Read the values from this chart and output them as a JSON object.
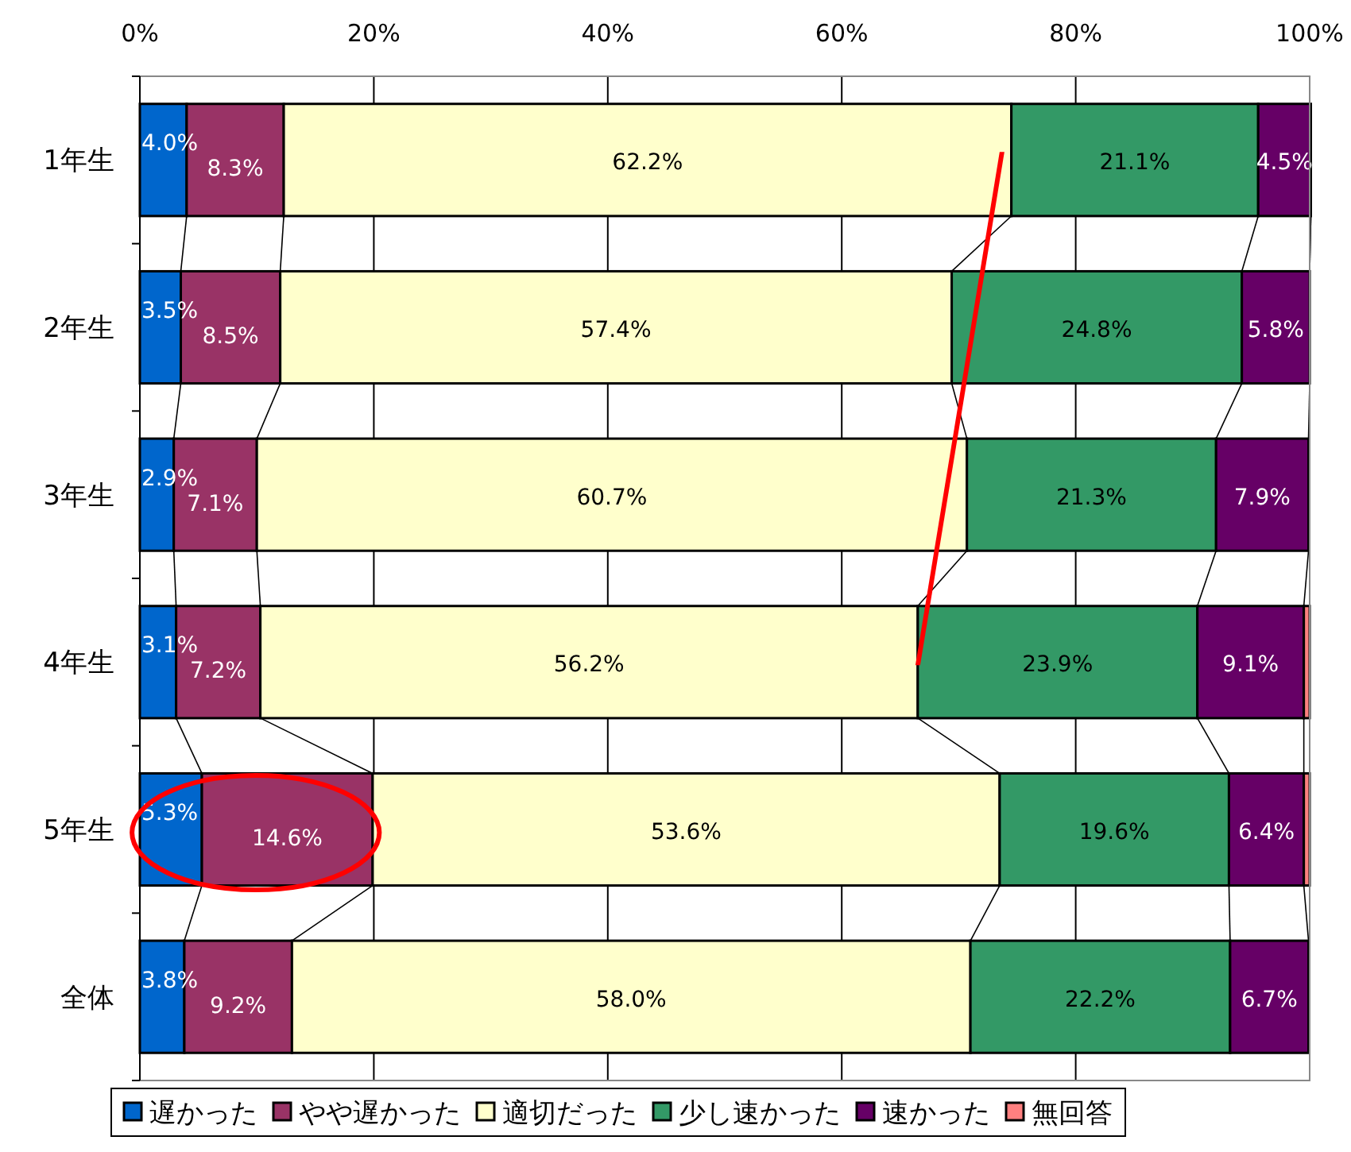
{
  "chart_data": {
    "type": "bar",
    "orientation": "horizontal",
    "stacked": true,
    "categories": [
      "1年生",
      "2年生",
      "3年生",
      "4年生",
      "5年生",
      "全体"
    ],
    "xlim": [
      0,
      100
    ],
    "xticks": [
      {
        "value": 0,
        "label": "0%"
      },
      {
        "value": 20,
        "label": "20%"
      },
      {
        "value": 40,
        "label": "40%"
      },
      {
        "value": 60,
        "label": "60%"
      },
      {
        "value": 80,
        "label": "80%"
      },
      {
        "value": 100,
        "label": "100%"
      }
    ],
    "grid": "x",
    "legend": "bottom",
    "series": [
      {
        "name": "遅かった",
        "color": "#0066cc",
        "values": [
          4.0,
          3.5,
          2.9,
          3.1,
          5.3,
          3.8
        ],
        "value_labels": [
          "4.0%",
          "3.5%",
          "2.9%",
          "3.1%",
          "5.3%",
          "3.8%"
        ]
      },
      {
        "name": "やや遅かった",
        "color": "#993366",
        "values": [
          8.3,
          8.5,
          7.1,
          7.2,
          14.6,
          9.2
        ],
        "value_labels": [
          "8.3%",
          "8.5%",
          "7.1%",
          "7.2%",
          "14.6%",
          "9.2%"
        ]
      },
      {
        "name": "適切だった",
        "color": "#ffffcc",
        "values": [
          62.2,
          57.4,
          60.7,
          56.2,
          53.6,
          58.0
        ],
        "value_labels": [
          "62.2%",
          "57.4%",
          "60.7%",
          "56.2%",
          "53.6%",
          "58.0%"
        ]
      },
      {
        "name": "少し速かった",
        "color": "#339966",
        "values": [
          21.1,
          24.8,
          21.3,
          23.9,
          19.6,
          22.2
        ],
        "value_labels": [
          "21.1%",
          "24.8%",
          "21.3%",
          "23.9%",
          "19.6%",
          "22.2%"
        ]
      },
      {
        "name": "速かった",
        "color": "#660066",
        "values": [
          4.5,
          5.8,
          7.9,
          9.1,
          6.4,
          6.7
        ],
        "value_labels": [
          "4.5%",
          "5.8%",
          "7.9%",
          "9.1%",
          "6.4%",
          "6.7%"
        ]
      },
      {
        "name": "無回答",
        "color": "#ff8080",
        "values": [
          0,
          0,
          null,
          0.5,
          0.5,
          null
        ],
        "value_labels": [
          null,
          null,
          null,
          null,
          null,
          null
        ]
      }
    ]
  }
}
